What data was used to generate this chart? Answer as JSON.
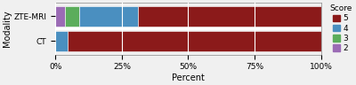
{
  "categories": [
    "ZTE-MRI",
    "CT"
  ],
  "scores": [
    "2",
    "3",
    "4",
    "5"
  ],
  "values": [
    [
      3.5,
      5.5,
      22.0,
      69.0
    ],
    [
      0.0,
      0.0,
      4.5,
      95.5
    ]
  ],
  "colors": {
    "5": "#8B1A1A",
    "4": "#4A8FC0",
    "3": "#5BAD5B",
    "2": "#9B6BB5"
  },
  "xlabel": "Percent",
  "ylabel": "Modality",
  "legend_title": "Score",
  "xticks": [
    0,
    25,
    50,
    75,
    100
  ],
  "xtick_labels": [
    "0%",
    "25%",
    "50%",
    "75%",
    "100%"
  ],
  "background_color": "#f0f0f0",
  "bar_edge_color": "white",
  "axis_fontsize": 7,
  "tick_fontsize": 6.5,
  "legend_fontsize": 6.5
}
